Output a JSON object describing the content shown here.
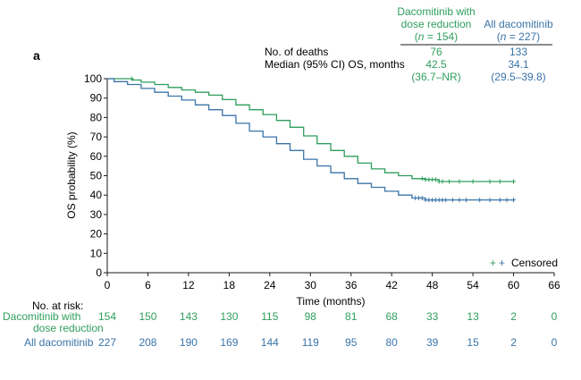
{
  "chart_data": {
    "type": "line",
    "panel_label": "a",
    "xlabel": "Time (months)",
    "ylabel": "OS probability (%)",
    "xlim": [
      0,
      66
    ],
    "ylim": [
      0,
      100
    ],
    "xticks": [
      0,
      6,
      12,
      18,
      24,
      30,
      36,
      42,
      48,
      54,
      60,
      66
    ],
    "yticks": [
      0,
      10,
      20,
      30,
      40,
      50,
      60,
      70,
      80,
      90,
      100
    ],
    "colors": {
      "green": "#2e9e5c",
      "blue": "#3a74a8",
      "dark": "#1a1a1a"
    },
    "legend": {
      "symbol": "+ +",
      "label": "Censored",
      "placement": "bottom-right"
    },
    "stats_table": {
      "columns": [
        {
          "line1": "Dacomitinib with",
          "line2": "dose reduction",
          "n_prefix": "(",
          "n_var": "n",
          "n_suffix": " = 154)"
        },
        {
          "line1": "All dacomitinib",
          "line2": "",
          "n_prefix": "(",
          "n_var": "n",
          "n_suffix": " = 227)"
        }
      ],
      "rows": [
        {
          "label": "No. of deaths",
          "values": [
            "76",
            "133"
          ]
        },
        {
          "label": "Median (95% CI) OS, months",
          "values": [
            "42.5",
            "34.1"
          ]
        },
        {
          "label": "",
          "values": [
            "(36.7–NR)",
            "(29.5–39.8)"
          ]
        }
      ]
    },
    "series": [
      {
        "name": "Dacomitinib with dose reduction",
        "color": "#2e9e5c",
        "points": [
          [
            0,
            100
          ],
          [
            3,
            100
          ],
          [
            3.7,
            99.3
          ],
          [
            5,
            98.2
          ],
          [
            7,
            97
          ],
          [
            9,
            95.5
          ],
          [
            11,
            94.2
          ],
          [
            13,
            93
          ],
          [
            15,
            91.5
          ],
          [
            17,
            89.2
          ],
          [
            19,
            86.5
          ],
          [
            21,
            84
          ],
          [
            23,
            81.5
          ],
          [
            25,
            78.5
          ],
          [
            27,
            75
          ],
          [
            29,
            70.5
          ],
          [
            31,
            66.5
          ],
          [
            33,
            63
          ],
          [
            35,
            60
          ],
          [
            37,
            56.5
          ],
          [
            39,
            53.5
          ],
          [
            41,
            51.5
          ],
          [
            43,
            50
          ],
          [
            45,
            48.5
          ],
          [
            47,
            48
          ],
          [
            49,
            47
          ],
          [
            52,
            47
          ],
          [
            56,
            47
          ],
          [
            60,
            47
          ]
        ],
        "censored_x": [
          3.6,
          46.5,
          47,
          47.5,
          48,
          48.5,
          49,
          49.5,
          50.5,
          52,
          54,
          56.5,
          58,
          60
        ]
      },
      {
        "name": "All dacomitinib",
        "color": "#3a74a8",
        "points": [
          [
            0,
            100
          ],
          [
            1,
            98.5
          ],
          [
            3,
            97
          ],
          [
            5,
            95
          ],
          [
            7,
            93
          ],
          [
            9,
            91
          ],
          [
            11,
            89
          ],
          [
            13,
            86.5
          ],
          [
            15,
            84
          ],
          [
            17,
            81
          ],
          [
            19,
            77
          ],
          [
            21,
            73
          ],
          [
            23,
            70
          ],
          [
            25,
            66.5
          ],
          [
            27,
            63
          ],
          [
            29,
            58.5
          ],
          [
            31,
            55
          ],
          [
            33,
            51.5
          ],
          [
            35,
            48.5
          ],
          [
            37,
            46
          ],
          [
            39,
            44
          ],
          [
            41,
            42
          ],
          [
            43,
            40
          ],
          [
            45,
            38.5
          ],
          [
            47,
            37.5
          ],
          [
            49,
            37.5
          ],
          [
            52,
            37.5
          ],
          [
            56,
            37.5
          ],
          [
            60,
            37.5
          ]
        ],
        "censored_x": [
          45.5,
          46,
          46.5,
          47,
          47.5,
          48,
          48.5,
          49,
          49.5,
          50,
          51,
          52,
          53,
          55,
          56.5,
          58,
          59,
          60
        ]
      }
    ],
    "risk_table": {
      "title": "No. at risk:",
      "times": [
        0,
        6,
        12,
        18,
        24,
        30,
        36,
        42,
        48,
        54,
        60,
        66
      ],
      "rows": [
        {
          "label_line1": "Dacomitinib with",
          "label_line2": "dose reduction",
          "color": "#2e9e5c",
          "values": [
            "154",
            "150",
            "143",
            "130",
            "115",
            "98",
            "81",
            "68",
            "33",
            "13",
            "2",
            "0"
          ]
        },
        {
          "label_line1": "All dacomitinib",
          "label_line2": "",
          "color": "#3a74a8",
          "values": [
            "227",
            "208",
            "190",
            "169",
            "144",
            "119",
            "95",
            "80",
            "39",
            "15",
            "2",
            "0"
          ]
        }
      ]
    }
  }
}
